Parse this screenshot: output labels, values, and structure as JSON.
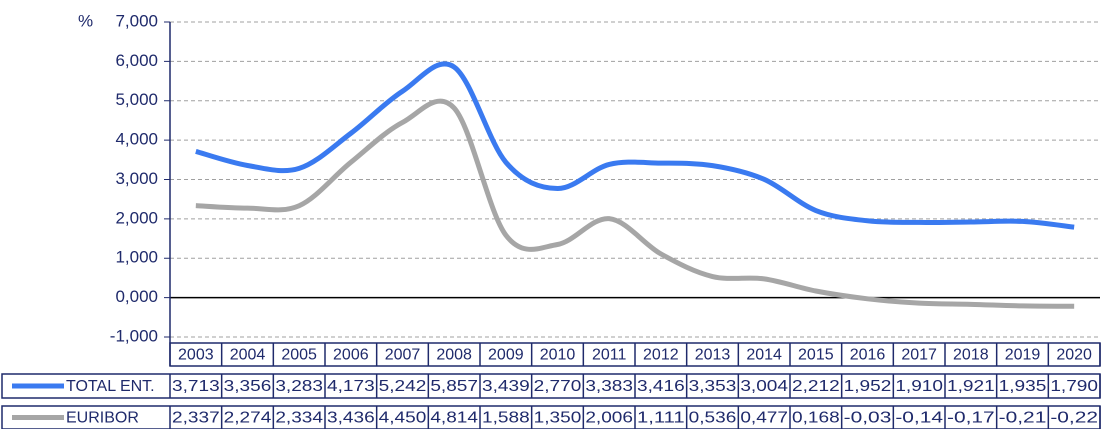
{
  "chart_data": {
    "type": "line",
    "y_label": "%",
    "categories": [
      "2003",
      "2004",
      "2005",
      "2006",
      "2007",
      "2008",
      "2009",
      "2010",
      "2011",
      "2012",
      "2013",
      "2014",
      "2015",
      "2016",
      "2017",
      "2018",
      "2019",
      "2020"
    ],
    "series": [
      {
        "name": "TOTAL ENT.",
        "color": "#3a7af0",
        "values": [
          3.713,
          3.356,
          3.283,
          4.173,
          5.242,
          5.857,
          3.439,
          2.77,
          3.383,
          3.416,
          3.353,
          3.004,
          2.212,
          1.952,
          1.91,
          1.921,
          1.935,
          1.79
        ],
        "value_labels": [
          "3,713",
          "3,356",
          "3,283",
          "4,173",
          "5,242",
          "5,857",
          "3,439",
          "2,770",
          "3,383",
          "3,416",
          "3,353",
          "3,004",
          "2,212",
          "1,952",
          "1,910",
          "1,921",
          "1,935",
          "1,790"
        ]
      },
      {
        "name": "EURIBOR",
        "color": "#a6a6a6",
        "values": [
          2.337,
          2.274,
          2.334,
          3.436,
          4.45,
          4.814,
          1.588,
          1.35,
          2.006,
          1.111,
          0.536,
          0.477,
          0.168,
          -0.03,
          -0.14,
          -0.17,
          -0.21,
          -0.22
        ],
        "value_labels": [
          "2,337",
          "2,274",
          "2,334",
          "3,436",
          "4,450",
          "4,814",
          "1,588",
          "1,350",
          "2,006",
          "1,111",
          "0,536",
          "0,477",
          "0,168",
          "-0,03",
          "-0,14",
          "-0,17",
          "-0,21",
          "-0,22"
        ]
      }
    ],
    "ylim": [
      -1,
      7
    ],
    "yticks": [
      {
        "value": -1,
        "label": "-1,000"
      },
      {
        "value": 0,
        "label": "0,000"
      },
      {
        "value": 1,
        "label": "1,000"
      },
      {
        "value": 2,
        "label": "2,000"
      },
      {
        "value": 3,
        "label": "3,000"
      },
      {
        "value": 4,
        "label": "4,000"
      },
      {
        "value": 5,
        "label": "5,000"
      },
      {
        "value": 6,
        "label": "6,000"
      },
      {
        "value": 7,
        "label": "7,000"
      }
    ],
    "grid": true
  }
}
